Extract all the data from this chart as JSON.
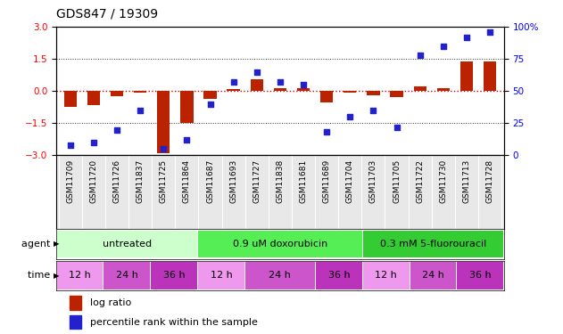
{
  "title": "GDS847 / 19309",
  "samples": [
    "GSM11709",
    "GSM11720",
    "GSM11726",
    "GSM11837",
    "GSM11725",
    "GSM11864",
    "GSM11687",
    "GSM11693",
    "GSM11727",
    "GSM11838",
    "GSM11681",
    "GSM11689",
    "GSM11704",
    "GSM11703",
    "GSM11705",
    "GSM11722",
    "GSM11730",
    "GSM11713",
    "GSM11728"
  ],
  "log_ratio": [
    -0.75,
    -0.65,
    -0.25,
    -0.08,
    -2.9,
    -1.5,
    -0.35,
    0.1,
    0.55,
    0.12,
    0.12,
    -0.55,
    -0.08,
    -0.18,
    -0.3,
    0.2,
    0.15,
    1.4,
    1.4
  ],
  "percentile": [
    8,
    10,
    20,
    35,
    5,
    12,
    40,
    57,
    65,
    57,
    55,
    18,
    30,
    35,
    22,
    78,
    85,
    92,
    96
  ],
  "ylim_left": [
    -3,
    3
  ],
  "ylim_right": [
    0,
    100
  ],
  "yticks_left": [
    -3,
    -1.5,
    0,
    1.5,
    3
  ],
  "yticks_right": [
    0,
    25,
    50,
    75,
    100
  ],
  "bar_color": "#bb2200",
  "dot_color": "#2222cc",
  "hline_red_color": "#cc0000",
  "hline_black_color": "#333333",
  "agent_groups": [
    {
      "label": "untreated",
      "start": 0,
      "end": 6,
      "color": "#ccffcc"
    },
    {
      "label": "0.9 uM doxorubicin",
      "start": 6,
      "end": 13,
      "color": "#55ee55"
    },
    {
      "label": "0.3 mM 5-fluorouracil",
      "start": 13,
      "end": 19,
      "color": "#33cc33"
    }
  ],
  "time_groups": [
    {
      "label": "12 h",
      "start": 0,
      "end": 2,
      "color": "#ee99ee"
    },
    {
      "label": "24 h",
      "start": 2,
      "end": 4,
      "color": "#cc55cc"
    },
    {
      "label": "36 h",
      "start": 4,
      "end": 6,
      "color": "#bb33bb"
    },
    {
      "label": "12 h",
      "start": 6,
      "end": 8,
      "color": "#ee99ee"
    },
    {
      "label": "24 h",
      "start": 8,
      "end": 11,
      "color": "#cc55cc"
    },
    {
      "label": "36 h",
      "start": 11,
      "end": 13,
      "color": "#bb33bb"
    },
    {
      "label": "12 h",
      "start": 13,
      "end": 15,
      "color": "#ee99ee"
    },
    {
      "label": "24 h",
      "start": 15,
      "end": 17,
      "color": "#cc55cc"
    },
    {
      "label": "36 h",
      "start": 17,
      "end": 19,
      "color": "#bb33bb"
    }
  ],
  "background_color": "#ffffff",
  "bar_width": 0.55,
  "dot_size": 22,
  "tick_fontsize": 7.5,
  "title_fontsize": 10,
  "sample_fontsize": 6.5,
  "label_fontsize": 8,
  "legend_fontsize": 8
}
